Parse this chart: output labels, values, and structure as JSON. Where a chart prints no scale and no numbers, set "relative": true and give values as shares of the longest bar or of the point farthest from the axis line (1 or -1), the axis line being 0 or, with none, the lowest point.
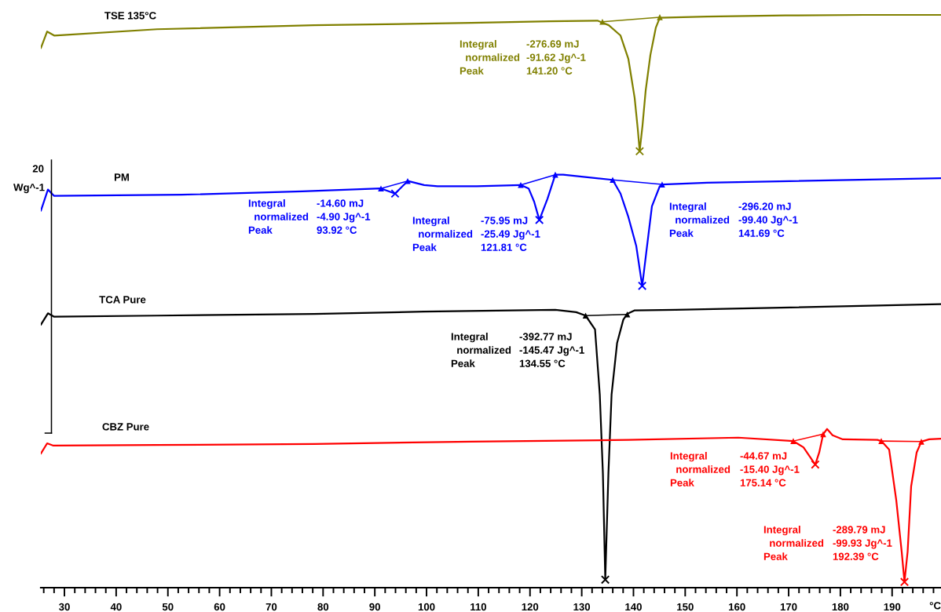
{
  "chart_data": {
    "type": "line",
    "relative": true,
    "xlim": [
      25.44,
      199.45
    ],
    "xticks": [
      {
        "value": 26,
        "label": null
      },
      {
        "value": 28,
        "label": null
      },
      30,
      {
        "value": 32,
        "label": null
      },
      {
        "value": 34,
        "label": null
      },
      {
        "value": 36,
        "label": null
      },
      {
        "value": 38,
        "label": null
      },
      40,
      {
        "value": 42,
        "label": null
      },
      {
        "value": 44,
        "label": null
      },
      {
        "value": 46,
        "label": null
      },
      {
        "value": 48,
        "label": null
      },
      50,
      {
        "value": 52,
        "label": null
      },
      {
        "value": 54,
        "label": null
      },
      {
        "value": 56,
        "label": null
      },
      {
        "value": 58,
        "label": null
      },
      60,
      {
        "value": 62,
        "label": null
      },
      {
        "value": 64,
        "label": null
      },
      {
        "value": 66,
        "label": null
      },
      {
        "value": 68,
        "label": null
      },
      70,
      {
        "value": 72,
        "label": null
      },
      {
        "value": 74,
        "label": null
      },
      {
        "value": 76,
        "label": null
      },
      {
        "value": 78,
        "label": null
      },
      80,
      {
        "value": 82,
        "label": null
      },
      {
        "value": 84,
        "label": null
      },
      {
        "value": 86,
        "label": null
      },
      {
        "value": 88,
        "label": null
      },
      90,
      {
        "value": 92,
        "label": null
      },
      {
        "value": 94,
        "label": null
      },
      {
        "value": 96,
        "label": null
      },
      {
        "value": 98,
        "label": null
      },
      100,
      {
        "value": 102,
        "label": null
      },
      {
        "value": 104,
        "label": null
      },
      {
        "value": 106,
        "label": null
      },
      {
        "value": 108,
        "label": null
      },
      110,
      {
        "value": 112,
        "label": null
      },
      {
        "value": 114,
        "label": null
      },
      {
        "value": 116,
        "label": null
      },
      {
        "value": 118,
        "label": null
      },
      120,
      {
        "value": 122,
        "label": null
      },
      {
        "value": 124,
        "label": null
      },
      {
        "value": 126,
        "label": null
      },
      {
        "value": 128,
        "label": null
      },
      130,
      {
        "value": 132,
        "label": null
      },
      {
        "value": 134,
        "label": null
      },
      {
        "value": 136,
        "label": null
      },
      {
        "value": 138,
        "label": null
      },
      140,
      {
        "value": 142,
        "label": null
      },
      {
        "value": 144,
        "label": null
      },
      {
        "value": 146,
        "label": null
      },
      {
        "value": 148,
        "label": null
      },
      150,
      {
        "value": 152,
        "label": null
      },
      {
        "value": 154,
        "label": null
      },
      {
        "value": 156,
        "label": null
      },
      {
        "value": 158,
        "label": null
      },
      160,
      {
        "value": 162,
        "label": null
      },
      {
        "value": 164,
        "label": null
      },
      {
        "value": 166,
        "label": null
      },
      {
        "value": 168,
        "label": null
      },
      170,
      {
        "value": 172,
        "label": null
      },
      {
        "value": 174,
        "label": null
      },
      {
        "value": 176,
        "label": null
      },
      {
        "value": 178,
        "label": null
      },
      180,
      {
        "value": 182,
        "label": null
      },
      {
        "value": 184,
        "label": null
      },
      {
        "value": 186,
        "label": null
      },
      {
        "value": 188,
        "label": null
      },
      190,
      {
        "value": 192,
        "label": null
      },
      {
        "value": 194,
        "label": null
      },
      {
        "value": 196,
        "label": null
      },
      {
        "value": 198,
        "label": null
      }
    ],
    "xlabel": "°C",
    "ylabel": "Wg^-1",
    "annotations": [
      "20",
      "Integral\n  normalized\nPeak",
      "-276.69 mJ\n-91.62 Jg^-1\n141.20 °C",
      "Integral\n  normalized\nPeak",
      "-14.60 mJ\n-4.90 Jg^-1\n93.92 °C",
      "Integral\n  normalized\nPeak",
      "-75.95 mJ\n-25.49 Jg^-1\n121.81 °C",
      "Integral\n  normalized\nPeak",
      "-296.20 mJ\n-99.40 Jg^-1\n141.69 °C",
      "Integral\n  normalized\nPeak",
      "-392.77 mJ\n-145.47 Jg^-1\n134.55 °C",
      "Integral\n  normalized\nPeak",
      "-44.67 mJ\n-15.40 Jg^-1\n175.14 °C",
      "Integral\n  normalized\nPeak",
      "-289.79 mJ\n-99.93 Jg^-1\n192.39 °C"
    ],
    "series": [
      {
        "name": "TSE 135°C",
        "color": "#808000",
        "x": [
          25.44,
          26.66,
          28.02,
          47.91,
          78.28,
          108.65,
          123.83,
          133.04,
          135.22,
          137.5,
          139.02,
          140.23,
          140.84,
          141.2,
          141.75,
          142.36,
          143.27,
          144.33,
          145.09,
          154.2,
          169.38,
          184.57,
          199.45
        ],
        "values": [
          0.942,
          0.971,
          0.964,
          0.975,
          0.982,
          0.986,
          0.989,
          0.99,
          0.982,
          0.964,
          0.923,
          0.855,
          0.8,
          0.762,
          0.807,
          0.868,
          0.93,
          0.978,
          0.995,
          0.997,
          0.999,
          1.0,
          1.0
        ]
      },
      {
        "name": "PM",
        "color": "#0000ff",
        "x": [
          25.44,
          26.81,
          28.02,
          52.62,
          76.0,
          91.19,
          93.92,
          96.35,
          99.54,
          102.12,
          109.71,
          118.21,
          119.73,
          120.8,
          121.81,
          123.38,
          124.89,
          126.41,
          135.98,
          137.5,
          139.02,
          140.53,
          141.69,
          142.51,
          143.57,
          145.09,
          145.54,
          154.2,
          199.45
        ],
        "values": [
          0.658,
          0.695,
          0.684,
          0.686,
          0.692,
          0.697,
          0.688,
          0.71,
          0.703,
          0.701,
          0.701,
          0.703,
          0.697,
          0.674,
          0.642,
          0.679,
          0.721,
          0.721,
          0.712,
          0.688,
          0.647,
          0.597,
          0.527,
          0.588,
          0.666,
          0.701,
          0.704,
          0.707,
          0.715
        ]
      },
      {
        "name": "TCA Pure",
        "color": "#000000",
        "x": [
          25.44,
          26.81,
          28.02,
          47.91,
          78.28,
          99.54,
          124.89,
          128.93,
          130.75,
          132.57,
          133.49,
          134.09,
          134.55,
          135.16,
          135.77,
          136.83,
          138.04,
          138.8,
          140.17,
          148.13,
          199.45
        ],
        "values": [
          0.459,
          0.479,
          0.473,
          0.475,
          0.478,
          0.482,
          0.485,
          0.481,
          0.475,
          0.451,
          0.337,
          0.2,
          0.014,
          0.2,
          0.337,
          0.427,
          0.468,
          0.478,
          0.484,
          0.485,
          0.495
        ]
      },
      {
        "name": "CBZ Pure",
        "color": "#ff0000",
        "x": [
          25.44,
          26.66,
          27.87,
          47.91,
          78.28,
          108.65,
          139.02,
          160.27,
          170.9,
          172.87,
          175.14,
          175.91,
          176.67,
          177.43,
          178.49,
          180.47,
          187.15,
          187.91,
          189.43,
          190.8,
          191.85,
          192.39,
          193.0,
          193.68,
          194.74,
          195.65,
          197.17,
          199.45
        ],
        "values": [
          0.234,
          0.252,
          0.248,
          0.249,
          0.251,
          0.255,
          0.258,
          0.262,
          0.256,
          0.245,
          0.215,
          0.236,
          0.268,
          0.277,
          0.266,
          0.259,
          0.258,
          0.256,
          0.241,
          0.153,
          0.063,
          0.01,
          0.063,
          0.177,
          0.236,
          0.255,
          0.259,
          0.26
        ]
      },
      {
        "type": "line",
        "color": "#808000",
        "x": [
          134.0,
          145.09
        ],
        "values": [
          0.988,
          0.996
        ]
      },
      {
        "type": "line",
        "color": "#0000ff",
        "x": [
          91.19,
          96.35
        ],
        "values": [
          0.697,
          0.71
        ]
      },
      {
        "type": "line",
        "color": "#0000ff",
        "x": [
          118.21,
          124.89
        ],
        "values": [
          0.703,
          0.721
        ]
      },
      {
        "type": "line",
        "color": "#0000ff",
        "x": [
          135.98,
          145.54
        ],
        "values": [
          0.712,
          0.704
        ]
      },
      {
        "type": "line",
        "color": "#000000",
        "x": [
          130.75,
          138.8
        ],
        "values": [
          0.475,
          0.477
        ]
      },
      {
        "type": "line",
        "color": "#ff0000",
        "x": [
          170.9,
          176.67
        ],
        "values": [
          0.256,
          0.268
        ]
      },
      {
        "type": "line",
        "color": "#ff0000",
        "x": [
          187.91,
          195.65
        ],
        "values": [
          0.256,
          0.255
        ]
      },
      {
        "type": "scatter",
        "marker": "cross",
        "color": "#808000",
        "x": [
          141.2
        ],
        "values": [
          0.762
        ]
      },
      {
        "type": "scatter",
        "marker": "cross",
        "color": "#0000ff",
        "x": [
          93.92,
          121.81,
          141.69
        ],
        "values": [
          0.688,
          0.642,
          0.527
        ]
      },
      {
        "type": "scatter",
        "marker": "cross",
        "color": "#000000",
        "x": [
          134.55
        ],
        "values": [
          0.014
        ]
      },
      {
        "type": "scatter",
        "marker": "cross",
        "color": "#ff0000",
        "x": [
          175.14,
          192.39
        ],
        "values": [
          0.215,
          0.01
        ]
      },
      {
        "type": "scatter",
        "marker": "triangle",
        "color": "#808000",
        "x": [
          134.0,
          145.09
        ],
        "values": [
          0.988,
          0.996
        ]
      },
      {
        "type": "scatter",
        "marker": "triangle",
        "color": "#0000ff",
        "x": [
          91.19,
          96.35,
          118.21,
          124.89,
          135.98,
          145.54
        ],
        "values": [
          0.697,
          0.71,
          0.703,
          0.721,
          0.712,
          0.704
        ]
      },
      {
        "type": "scatter",
        "marker": "triangle",
        "color": "#000000",
        "x": [
          130.75,
          138.8
        ],
        "values": [
          0.475,
          0.477
        ]
      },
      {
        "type": "scatter",
        "marker": "triangle",
        "color": "#ff0000",
        "x": [
          170.9,
          176.67,
          187.91,
          195.65
        ],
        "values": [
          0.256,
          0.268,
          0.256,
          0.255
        ]
      }
    ]
  }
}
